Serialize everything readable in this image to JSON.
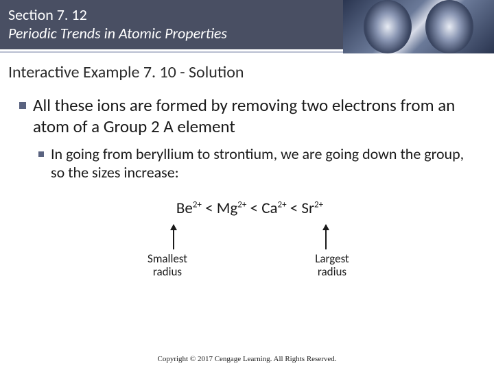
{
  "header": {
    "section": "Section 7. 12",
    "subtitle": "Periodic Trends in Atomic Properties",
    "bg_color": "#494f63",
    "text_color": "#ffffff"
  },
  "example_title": "Interactive Example 7. 10 - Solution",
  "bullets": {
    "main": "All these ions are formed by removing two electrons from an atom of a Group 2 A element",
    "sub": "In going from beryllium to strontium, we are going down the group, so the sizes increase:"
  },
  "ions": {
    "sequence": [
      {
        "symbol": "Be",
        "charge": "2+"
      },
      {
        "symbol": "Mg",
        "charge": "2+"
      },
      {
        "symbol": "Ca",
        "charge": "2+"
      },
      {
        "symbol": "Sr",
        "charge": "2+"
      }
    ],
    "separator": " < "
  },
  "labels": {
    "left": "Smallest radius",
    "right": "Largest radius"
  },
  "copyright": "Copyright © 2017 Cengage Learning. All Rights Reserved.",
  "colors": {
    "bullet": "#5a6380",
    "text": "#1a1a1a",
    "line": "#b8bed0"
  }
}
